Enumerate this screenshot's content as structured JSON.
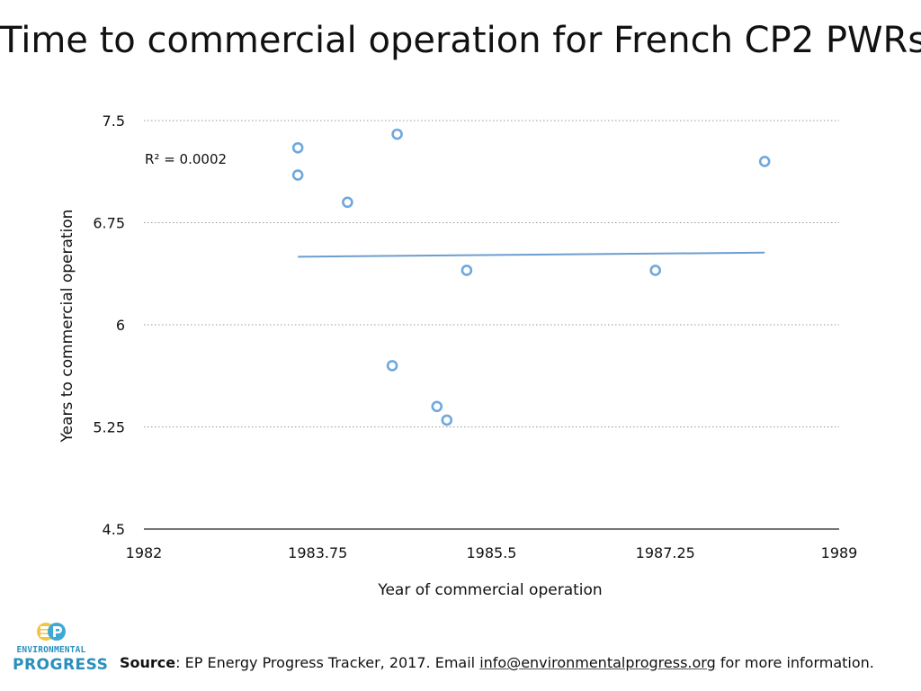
{
  "chart_data": {
    "type": "scatter",
    "title": "Time to commercial operation for French CP2 PWRs",
    "xlabel": "Year of commercial operation",
    "ylabel": "Years to commercial operation",
    "xlim": [
      1982,
      1989
    ],
    "ylim": [
      4.5,
      7.5
    ],
    "xticks": [
      1982,
      1983.75,
      1985.5,
      1987.25,
      1989
    ],
    "xtick_labels": [
      "1982",
      "1983.75",
      "1985.5",
      "1987.25",
      "1989"
    ],
    "yticks": [
      4.5,
      5.25,
      6,
      6.75,
      7.5
    ],
    "ytick_labels": [
      "4.5",
      "5.25",
      "6",
      "6.75",
      "7.5"
    ],
    "grid": "horizontal dotted",
    "series": [
      {
        "name": "CP2 PWRs",
        "x": [
          1983.55,
          1983.55,
          1984.05,
          1984.5,
          1984.55,
          1984.95,
          1985.05,
          1985.25,
          1987.15,
          1988.25
        ],
        "y": [
          7.3,
          7.1,
          6.9,
          5.7,
          7.4,
          5.4,
          5.3,
          6.4,
          6.4,
          7.2
        ]
      }
    ],
    "trendline": {
      "type": "linear",
      "x": [
        1983.55,
        1988.25
      ],
      "y": [
        6.5,
        6.53
      ]
    },
    "annotations": [
      "R² = 0.0002"
    ],
    "colors": {
      "marker": "#6fa8dc",
      "trendline": "#6d9ecf",
      "grid": "#999999",
      "axis": "#222222"
    }
  },
  "footer": {
    "source_label": "Source",
    "source_text": ": EP Energy Progress Tracker, 2017. Email ",
    "email": "info@environmentalprogress.org",
    "source_suffix": " for more information."
  },
  "logo": {
    "line1": "ENVIRONMENTAL",
    "line2": "PROGRESS",
    "colors": {
      "e": "#f4c542",
      "p": "#3fa9d6",
      "text": "#2a8fbd"
    }
  }
}
